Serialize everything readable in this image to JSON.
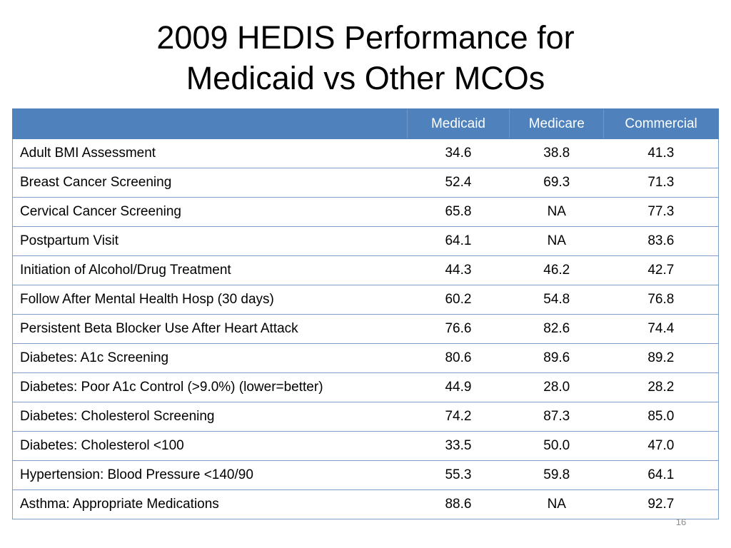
{
  "slide": {
    "title_line1": "2009 HEDIS Performance for",
    "title_line2": "Medicaid vs Other MCOs",
    "page_number": "16"
  },
  "table": {
    "header_color": "#4f81bd",
    "columns": [
      "",
      "Medicaid",
      "Medicare",
      "Commercial"
    ],
    "rows": [
      [
        "Adult BMI Assessment",
        "34.6",
        "38.8",
        "41.3"
      ],
      [
        "Breast Cancer Screening",
        "52.4",
        "69.3",
        "71.3"
      ],
      [
        "Cervical Cancer Screening",
        "65.8",
        "NA",
        "77.3"
      ],
      [
        "Postpartum Visit",
        "64.1",
        "NA",
        "83.6"
      ],
      [
        "Initiation of Alcohol/Drug Treatment",
        "44.3",
        "46.2",
        "42.7"
      ],
      [
        "Follow After Mental Health Hosp  (30 days)",
        "60.2",
        "54.8",
        "76.8"
      ],
      [
        "Persistent Beta Blocker Use After Heart Attack",
        "76.6",
        "82.6",
        "74.4"
      ],
      [
        "Diabetes: A1c Screening",
        "80.6",
        "89.6",
        "89.2"
      ],
      [
        "Diabetes: Poor A1c Control (>9.0%) (lower=better)",
        "44.9",
        "28.0",
        "28.2"
      ],
      [
        "Diabetes: Cholesterol Screening",
        "74.2",
        "87.3",
        "85.0"
      ],
      [
        "Diabetes: Cholesterol <100",
        "33.5",
        "50.0",
        "47.0"
      ],
      [
        "Hypertension: Blood Pressure <140/90",
        "55.3",
        "59.8",
        "64.1"
      ],
      [
        "Asthma:  Appropriate Medications",
        "88.6",
        "NA",
        "92.7"
      ]
    ]
  }
}
